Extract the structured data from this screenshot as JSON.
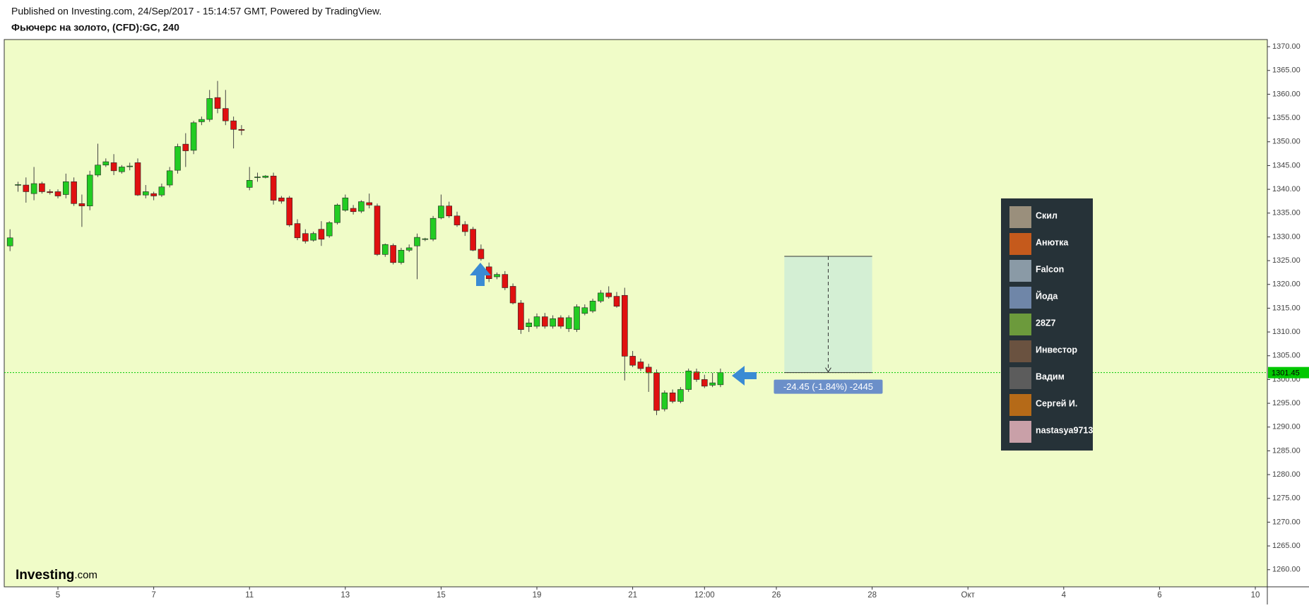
{
  "header": {
    "published": "Published on Investing.com, 24/Sep/2017 - 15:14:57 GMT, Powered by TradingView.",
    "instrument": "Фьючерс на золото, (CFD):GC, 240"
  },
  "watermark": {
    "brand": "Investing",
    "suffix": ".com"
  },
  "viewers": {
    "names": [
      "Скил",
      "Анютка",
      "Falcon",
      "Йода",
      "28Z7",
      "Инвестор",
      "Вадим",
      "Сергей И.",
      "nastasya9713"
    ]
  },
  "chart_data": {
    "type": "candlestick",
    "categories": [
      null,
      null,
      null,
      null,
      null,
      null,
      "5",
      null,
      null,
      null,
      null,
      null,
      null,
      null,
      null,
      null,
      null,
      null,
      "7",
      null,
      null,
      null,
      null,
      null,
      null,
      null,
      null,
      null,
      null,
      null,
      "11",
      null,
      null,
      null,
      null,
      null,
      null,
      null,
      null,
      null,
      null,
      null,
      "13",
      null,
      null,
      null,
      null,
      null,
      null,
      null,
      null,
      null,
      null,
      null,
      "15",
      null,
      null,
      null,
      null,
      null,
      null,
      null,
      null,
      null,
      null,
      null,
      "19",
      null,
      null,
      null,
      null,
      null,
      null,
      null,
      null,
      null,
      null,
      null,
      "21",
      null,
      null,
      null,
      null,
      null,
      null,
      null,
      null,
      "12:00",
      null,
      null,
      null,
      null,
      null,
      null,
      null,
      null,
      "26",
      null,
      null,
      null,
      null,
      null,
      null,
      null,
      null,
      null,
      null,
      null,
      "28",
      null,
      null,
      null,
      null,
      null,
      null,
      null,
      null,
      null,
      null,
      null,
      "Окт",
      null,
      null,
      null,
      null,
      null,
      null,
      null,
      null,
      null,
      null,
      null,
      "4",
      null,
      null,
      null,
      null,
      null,
      null,
      null,
      null,
      null,
      null,
      null,
      "6",
      null,
      null,
      null,
      null,
      null,
      null,
      null,
      null,
      null,
      null,
      null,
      "10"
    ],
    "open": [
      1328.1,
      1340.9,
      1340.9,
      1339.1,
      1341.2,
      1339.5,
      1339.5,
      1338.9,
      1341.6,
      1337.0,
      1336.5,
      1343.0,
      1345.1,
      1345.6,
      1343.7,
      1344.9,
      1345.6,
      1338.8,
      1339.1,
      1338.8,
      1340.9,
      1344.0,
      1349.5,
      1348.2,
      1354.2,
      1354.7,
      1359.3,
      1357.0,
      1354.4,
      1352.6,
      1340.4,
      1342.5,
      1342.5,
      1342.8,
      1338.2,
      1338.2,
      1332.8,
      1330.7,
      1329.3,
      1331.6,
      1330.2,
      1333.0,
      1335.6,
      1336.0,
      1335.4,
      1337.2,
      1336.5,
      1326.3,
      1328.2,
      1324.6,
      1327.2,
      1328.1,
      1329.5,
      1329.5,
      1334.0,
      1336.5,
      1334.4,
      1332.6,
      1331.6,
      1327.4,
      1323.7,
      1321.6,
      1322.1,
      1319.6,
      1316.1,
      1311.1,
      1311.2,
      1313.2,
      1311.2,
      1313.0,
      1310.7,
      1310.5,
      1313.9,
      1314.4,
      1316.5,
      1318.2,
      1317.5,
      1317.7,
      1304.9,
      1303.7,
      1302.6,
      1301.4,
      1293.8,
      1297.2,
      1295.4,
      1297.9,
      1301.6,
      1300.0,
      1298.8,
      1298.9,
      null,
      null,
      null,
      null,
      null,
      null,
      null,
      null,
      null,
      null,
      null,
      null,
      null,
      null,
      null,
      null,
      null,
      null,
      null,
      null,
      null,
      null,
      null,
      null,
      null,
      null,
      null,
      null,
      null,
      null,
      null,
      null,
      null,
      null,
      null,
      null,
      null,
      null,
      null,
      null,
      null,
      null,
      null,
      null,
      null,
      null,
      null,
      null,
      null,
      null,
      null,
      null,
      null,
      null,
      null,
      null,
      null,
      null,
      null,
      null,
      null,
      null,
      null,
      null,
      null,
      null,
      null
    ],
    "high": [
      1331.6,
      1341.6,
      1342.5,
      1344.7,
      1341.6,
      1340.0,
      1340.0,
      1343.3,
      1342.5,
      1338.9,
      1343.9,
      1349.6,
      1346.5,
      1347.4,
      1345.1,
      1345.6,
      1346.5,
      1340.9,
      1339.5,
      1341.2,
      1344.7,
      1349.6,
      1351.8,
      1354.4,
      1355.3,
      1360.9,
      1362.8,
      1360.9,
      1355.3,
      1353.5,
      1344.7,
      1343.5,
      1343.0,
      1343.5,
      1338.6,
      1338.6,
      1333.7,
      1331.6,
      1331.1,
      1333.3,
      1333.3,
      1337.0,
      1338.9,
      1336.7,
      1337.7,
      1339.1,
      1337.0,
      1328.6,
      1328.6,
      1327.7,
      1328.4,
      1330.7,
      1329.8,
      1334.4,
      1338.9,
      1337.4,
      1335.3,
      1333.3,
      1332.1,
      1328.4,
      1324.6,
      1322.5,
      1322.8,
      1320.2,
      1316.7,
      1312.8,
      1313.9,
      1314.0,
      1313.5,
      1313.5,
      1313.5,
      1315.8,
      1315.8,
      1317.0,
      1318.8,
      1319.6,
      1318.4,
      1319.3,
      1306.0,
      1304.4,
      1303.3,
      1302.1,
      1297.7,
      1297.9,
      1298.4,
      1302.3,
      1302.3,
      1301.0,
      1301.4,
      1302.3,
      null,
      null,
      null,
      null,
      null,
      null,
      null,
      null,
      null,
      null,
      null,
      null,
      null,
      null,
      null,
      null,
      null,
      null,
      null,
      null,
      null,
      null,
      null,
      null,
      null,
      null,
      null,
      null,
      null,
      null,
      null,
      null,
      null,
      null,
      null,
      null,
      null,
      null,
      null,
      null,
      null,
      null,
      null,
      null,
      null,
      null,
      null,
      null,
      null,
      null,
      null,
      null,
      null,
      null,
      null,
      null,
      null,
      null,
      null,
      null,
      null,
      null,
      null,
      null,
      null,
      null,
      null
    ],
    "low": [
      1327.0,
      1339.5,
      1337.2,
      1337.7,
      1339.1,
      1338.9,
      1338.1,
      1338.1,
      1336.5,
      1332.1,
      1335.6,
      1342.6,
      1344.7,
      1343.0,
      1343.3,
      1344.0,
      1338.6,
      1338.1,
      1337.7,
      1338.4,
      1340.4,
      1343.3,
      1344.7,
      1347.4,
      1353.5,
      1354.2,
      1356.0,
      1353.5,
      1348.6,
      1351.4,
      1339.8,
      1341.6,
      1342.3,
      1336.8,
      1337.0,
      1332.1,
      1329.3,
      1328.6,
      1329.0,
      1328.1,
      1329.8,
      1332.6,
      1335.3,
      1334.7,
      1335.0,
      1336.0,
      1326.0,
      1325.8,
      1324.2,
      1324.2,
      1326.8,
      1321.1,
      1329.1,
      1329.1,
      1333.7,
      1334.0,
      1332.1,
      1330.2,
      1327.0,
      1325.0,
      1320.5,
      1321.1,
      1318.8,
      1315.8,
      1309.6,
      1310.0,
      1310.7,
      1310.7,
      1310.7,
      1310.7,
      1310.0,
      1310.0,
      1313.5,
      1314.0,
      1316.1,
      1317.0,
      1315.1,
      1299.8,
      1302.6,
      1301.8,
      1297.4,
      1292.5,
      1293.3,
      1295.0,
      1295.0,
      1297.4,
      1299.5,
      1298.2,
      1298.4,
      1298.4,
      null,
      null,
      null,
      null,
      null,
      null,
      null,
      null,
      null,
      null,
      null,
      null,
      null,
      null,
      null,
      null,
      null,
      null,
      null,
      null,
      null,
      null,
      null,
      null,
      null,
      null,
      null,
      null,
      null,
      null,
      null,
      null,
      null,
      null,
      null,
      null,
      null,
      null,
      null,
      null,
      null,
      null,
      null,
      null,
      null,
      null,
      null,
      null,
      null,
      null,
      null,
      null,
      null,
      null,
      null,
      null,
      null,
      null,
      null,
      null,
      null,
      null,
      null,
      null,
      null,
      null,
      null
    ],
    "close": [
      1329.8,
      1341.0,
      1339.5,
      1341.2,
      1339.5,
      1339.3,
      1338.6,
      1341.6,
      1337.0,
      1336.5,
      1343.0,
      1345.1,
      1345.8,
      1343.9,
      1344.7,
      1344.9,
      1338.8,
      1339.5,
      1338.6,
      1340.5,
      1343.9,
      1349.0,
      1348.1,
      1354.0,
      1354.7,
      1359.1,
      1357.0,
      1354.4,
      1352.6,
      1352.4,
      1341.9,
      1342.6,
      1342.8,
      1337.7,
      1337.5,
      1332.5,
      1329.8,
      1329.1,
      1330.7,
      1329.5,
      1333.0,
      1336.7,
      1338.2,
      1335.3,
      1337.4,
      1336.7,
      1326.3,
      1328.4,
      1324.6,
      1327.2,
      1327.7,
      1329.9,
      1329.6,
      1333.9,
      1336.5,
      1334.4,
      1332.5,
      1331.1,
      1327.2,
      1325.4,
      1321.2,
      1322.1,
      1319.3,
      1316.1,
      1310.5,
      1311.9,
      1313.2,
      1311.2,
      1312.8,
      1311.2,
      1313.0,
      1315.3,
      1315.1,
      1316.5,
      1318.2,
      1317.4,
      1315.4,
      1304.9,
      1303.0,
      1302.3,
      1301.4,
      1293.5,
      1297.2,
      1295.4,
      1297.9,
      1301.8,
      1300.0,
      1298.6,
      1299.3,
      1301.45,
      null,
      null,
      null,
      null,
      null,
      null,
      null,
      null,
      null,
      null,
      null,
      null,
      null,
      null,
      null,
      null,
      null,
      null,
      null,
      null,
      null,
      null,
      null,
      null,
      null,
      null,
      null,
      null,
      null,
      null,
      null,
      null,
      null,
      null,
      null,
      null,
      null,
      null,
      null,
      null,
      null,
      null,
      null,
      null,
      null,
      null,
      null,
      null,
      null,
      null,
      null,
      null,
      null,
      null,
      null,
      null,
      null,
      null,
      null,
      null,
      null,
      null,
      null,
      null,
      null,
      null,
      null
    ],
    "up_color": "#22cc22",
    "down_color": "#e01010",
    "background": "#f0fcc8",
    "ylim": [
      1256.4,
      1371.5
    ],
    "yticks": [
      {
        "value": 1260,
        "label": "1260.00"
      },
      {
        "value": 1265,
        "label": "1265.00"
      },
      {
        "value": 1270,
        "label": "1270.00"
      },
      {
        "value": 1275,
        "label": "1275.00"
      },
      {
        "value": 1280,
        "label": "1280.00"
      },
      {
        "value": 1285,
        "label": "1285.00"
      },
      {
        "value": 1290,
        "label": "1290.00"
      },
      {
        "value": 1295,
        "label": "1295.00"
      },
      {
        "value": 1300,
        "label": "1300.00"
      },
      {
        "value": 1305,
        "label": "1305.00"
      },
      {
        "value": 1310,
        "label": "1310.00"
      },
      {
        "value": 1315,
        "label": "1315.00"
      },
      {
        "value": 1320,
        "label": "1320.00"
      },
      {
        "value": 1325,
        "label": "1325.00"
      },
      {
        "value": 1330,
        "label": "1330.00"
      },
      {
        "value": 1335,
        "label": "1335.00"
      },
      {
        "value": 1340,
        "label": "1340.00"
      },
      {
        "value": 1345,
        "label": "1345.00"
      },
      {
        "value": 1350,
        "label": "1350.00"
      },
      {
        "value": 1355,
        "label": "1355.00"
      },
      {
        "value": 1360,
        "label": "1360.00"
      },
      {
        "value": 1365,
        "label": "1365.00"
      },
      {
        "value": 1370,
        "label": "1370.00"
      }
    ],
    "last_price": 1301.45,
    "last_price_color": "#00c800",
    "measure": {
      "from": 1325.9,
      "to": 1301.45,
      "label": "-24.45 (-1.84%) -2445"
    }
  }
}
